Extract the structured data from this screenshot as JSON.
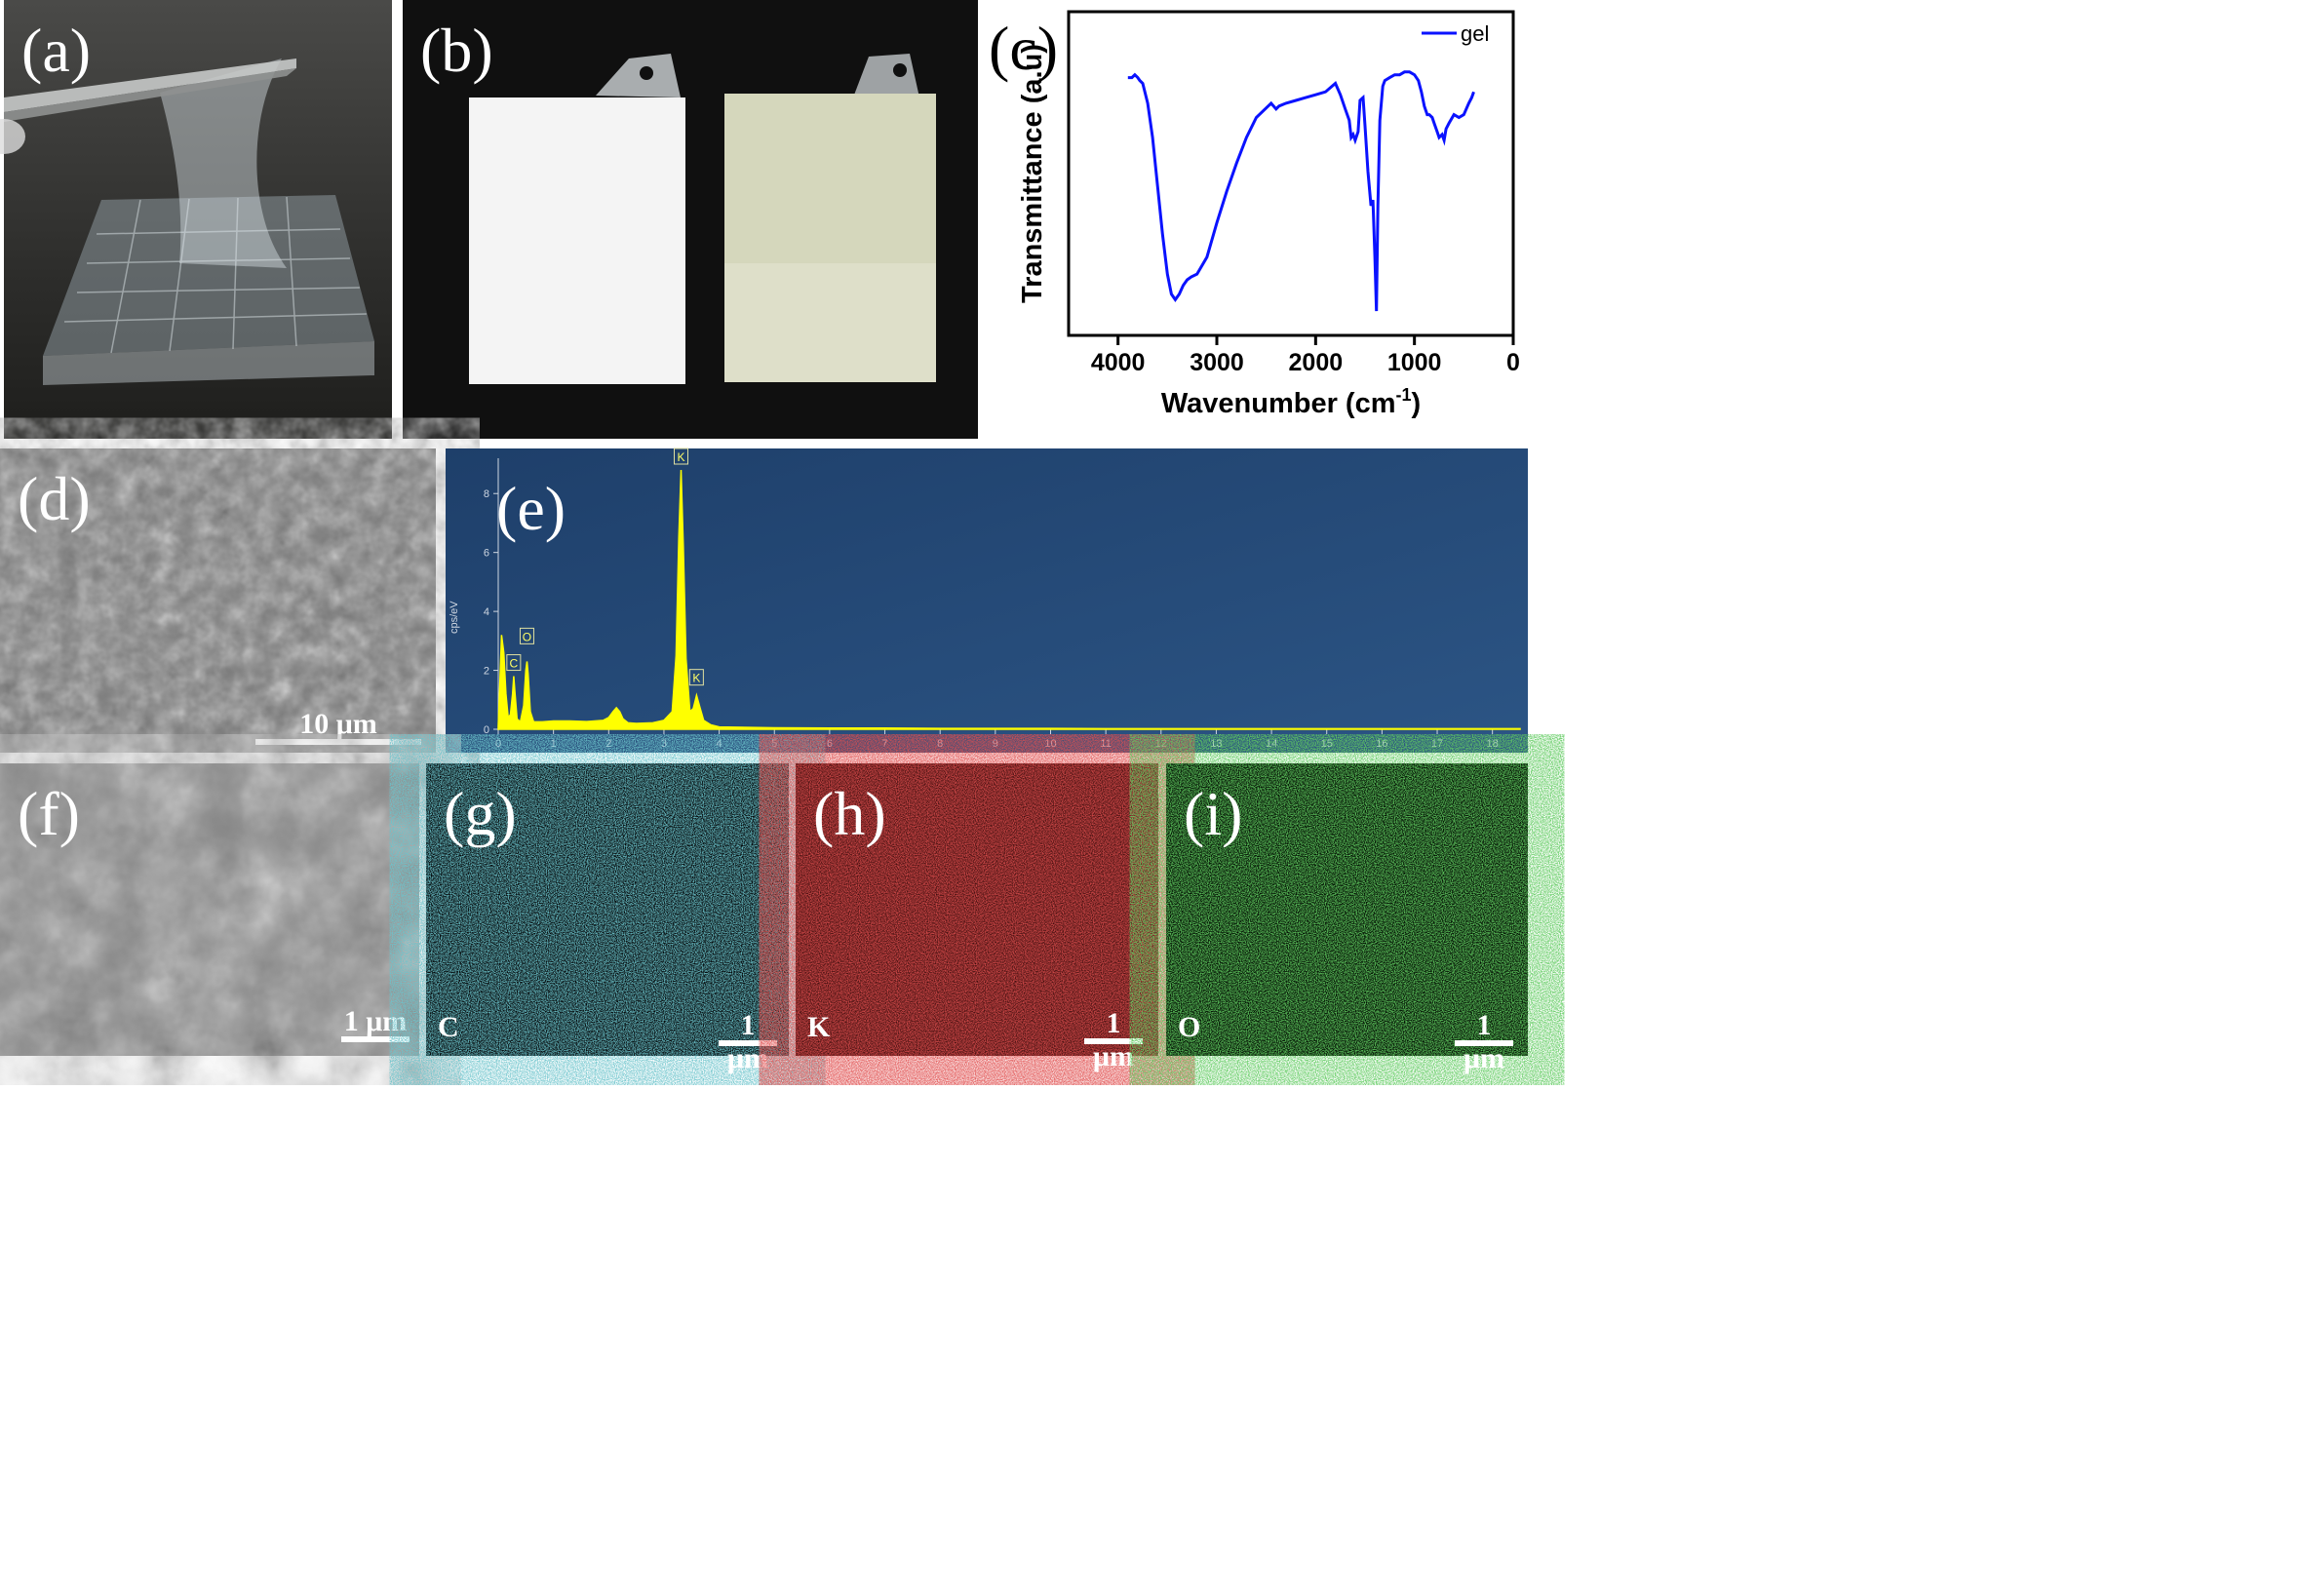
{
  "panels": {
    "a": {
      "label": "(a)"
    },
    "b": {
      "label": "(b)"
    },
    "c": {
      "label": "(c)"
    },
    "d": {
      "label": "(d)",
      "scale": "10 μm"
    },
    "e": {
      "label": "(e)"
    },
    "f": {
      "label": "(f)",
      "scale": "1 μm"
    },
    "g": {
      "label": "(g)",
      "scale": "1 μm",
      "element": "C",
      "color": "#1f6f78"
    },
    "h": {
      "label": "(h)",
      "scale": "1 μm",
      "element": "K",
      "color": "#8a1010"
    },
    "i": {
      "label": "(i)",
      "scale": "1 μm",
      "element": "O",
      "color": "#1f7a1f"
    }
  },
  "chart_data": [
    {
      "type": "line",
      "panel": "c",
      "xlabel": "Wavenumber (cm",
      "xlabel_sup": "-1",
      "xlabel_end": ")",
      "ylabel": "Transmittance (a.u)",
      "xlim": [
        4500,
        0
      ],
      "ylim": [
        0,
        1
      ],
      "xticks": [
        "4000",
        "3000",
        "2000",
        "1000",
        "0"
      ],
      "xtick_values": [
        4000,
        3000,
        2000,
        1000,
        0
      ],
      "line_color": "#0a12ff",
      "series": [
        {
          "name": "gel",
          "x": [
            3900,
            3860,
            3830,
            3800,
            3780,
            3750,
            3700,
            3650,
            3600,
            3550,
            3500,
            3460,
            3420,
            3380,
            3340,
            3300,
            3260,
            3200,
            3100,
            3000,
            2900,
            2800,
            2700,
            2600,
            2450,
            2400,
            2370,
            2300,
            2200,
            2100,
            2000,
            1900,
            1800,
            1750,
            1700,
            1660,
            1640,
            1620,
            1600,
            1570,
            1550,
            1520,
            1500,
            1470,
            1440,
            1420,
            1400,
            1385,
            1370,
            1350,
            1320,
            1300,
            1250,
            1200,
            1150,
            1100,
            1050,
            1000,
            960,
            930,
            900,
            870,
            850,
            820,
            800,
            770,
            750,
            720,
            700,
            680,
            650,
            600,
            550,
            500,
            450,
            420,
            400
          ],
          "y": [
            0.83,
            0.83,
            0.84,
            0.83,
            0.82,
            0.81,
            0.74,
            0.62,
            0.45,
            0.28,
            0.14,
            0.07,
            0.05,
            0.07,
            0.1,
            0.12,
            0.13,
            0.14,
            0.2,
            0.32,
            0.43,
            0.53,
            0.62,
            0.69,
            0.74,
            0.72,
            0.73,
            0.74,
            0.75,
            0.76,
            0.77,
            0.78,
            0.81,
            0.77,
            0.72,
            0.68,
            0.62,
            0.63,
            0.61,
            0.64,
            0.75,
            0.76,
            0.66,
            0.5,
            0.38,
            0.4,
            0.2,
            0.01,
            0.38,
            0.68,
            0.8,
            0.82,
            0.83,
            0.84,
            0.84,
            0.85,
            0.85,
            0.84,
            0.82,
            0.78,
            0.73,
            0.7,
            0.7,
            0.69,
            0.67,
            0.64,
            0.62,
            0.63,
            0.61,
            0.65,
            0.67,
            0.7,
            0.69,
            0.7,
            0.74,
            0.76,
            0.78
          ]
        }
      ]
    },
    {
      "type": "line",
      "panel": "e",
      "xlabel": "",
      "ylabel": "cps/eV",
      "xlim": [
        0,
        18.5
      ],
      "ylim": [
        0,
        9
      ],
      "xticks": [
        "0",
        "1",
        "2",
        "3",
        "4",
        "5",
        "6",
        "7",
        "8",
        "9",
        "10",
        "11",
        "12",
        "13",
        "14",
        "15",
        "16",
        "17",
        "18"
      ],
      "yticks": [
        "0",
        "2",
        "4",
        "6",
        "8"
      ],
      "line_color": "#ffff00",
      "peak_labels": [
        {
          "text": "K",
          "x": 3.31,
          "y": 9.0
        },
        {
          "text": "O",
          "x": 0.52,
          "y": 2.9
        },
        {
          "text": "C",
          "x": 0.28,
          "y": 2.0
        },
        {
          "text": "K",
          "x": 3.59,
          "y": 1.5
        }
      ],
      "series": [
        {
          "x": [
            0,
            0.03,
            0.06,
            0.1,
            0.14,
            0.18,
            0.22,
            0.26,
            0.28,
            0.3,
            0.34,
            0.4,
            0.46,
            0.5,
            0.52,
            0.54,
            0.58,
            0.64,
            0.8,
            1.0,
            1.3,
            1.6,
            1.9,
            2.0,
            2.08,
            2.14,
            2.2,
            2.26,
            2.35,
            2.5,
            2.8,
            3.0,
            3.15,
            3.22,
            3.27,
            3.31,
            3.35,
            3.4,
            3.47,
            3.53,
            3.59,
            3.65,
            3.72,
            3.85,
            4.0,
            5.0,
            6.0,
            7.0,
            8.0,
            9.0,
            10.0,
            11.0,
            12.0,
            13.0,
            14.0,
            15.0,
            16.0,
            17.0,
            18.0,
            18.5
          ],
          "y": [
            0.1,
            1.6,
            3.2,
            2.6,
            1.2,
            0.4,
            0.5,
            1.2,
            1.8,
            1.3,
            0.35,
            0.25,
            0.8,
            2.0,
            2.3,
            1.9,
            0.6,
            0.25,
            0.25,
            0.28,
            0.28,
            0.26,
            0.3,
            0.4,
            0.6,
            0.73,
            0.6,
            0.35,
            0.22,
            0.2,
            0.22,
            0.3,
            0.6,
            2.5,
            6.5,
            8.8,
            6.2,
            2.4,
            0.6,
            0.7,
            1.15,
            0.75,
            0.3,
            0.15,
            0.08,
            0.05,
            0.04,
            0.04,
            0.03,
            0.03,
            0.03,
            0.02,
            0.02,
            0.02,
            0.02,
            0.02,
            0.02,
            0.02,
            0.02,
            0.02
          ]
        }
      ]
    }
  ]
}
